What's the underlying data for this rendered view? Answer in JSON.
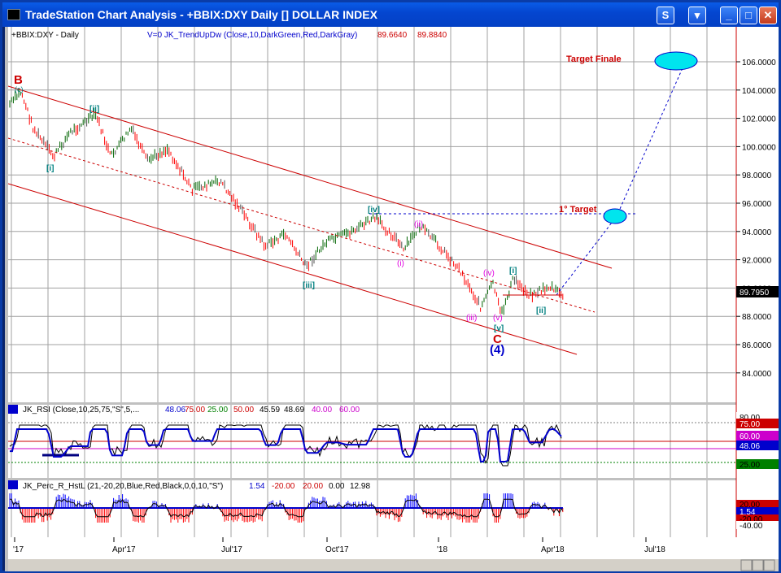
{
  "window": {
    "title": "TradeStation Chart Analysis - +BBIX:DXY Daily [] DOLLAR INDEX",
    "buttons": {
      "s": "S",
      "dropdown": "▾",
      "min": "_",
      "max": "□",
      "close": "✕"
    }
  },
  "price_panel": {
    "symbol": "+BBIX:DXY - Daily",
    "indicator": "V=0  JK_TrendUpDw (Close,10,DarkGreen,Red,DarkGray)",
    "ind_val1": "89.6640",
    "ind_val2": "89.8840",
    "last_price": "89.7950",
    "y_ticks": [
      "106.0000",
      "104.0000",
      "102.0000",
      "100.0000",
      "98.0000",
      "96.0000",
      "94.0000",
      "92.0000",
      "90.0000",
      "88.0000",
      "86.0000",
      "84.0000"
    ],
    "annotations": {
      "b": "B",
      "c": "C",
      "four": "(4)",
      "target_finale": "Target Finale",
      "target1": "1° Target",
      "w_ii": "[ii]",
      "w_i": "[i]",
      "w_iii": "[iii]",
      "w_iv": "[iv]",
      "w_v": "[v]",
      "w_i2": "[i]",
      "w_ii2": "[ii]",
      "s_i": "(i)",
      "s_ii": "(ii)",
      "s_iii": "(iii)",
      "s_iv": "(iv)",
      "s_v": "(v)",
      "s_c": "(c)"
    }
  },
  "rsi_panel": {
    "label": "JK_RSI (Close,10,25,75,\"S\",5,...",
    "v1": "48.06",
    "v2": "75.00",
    "v3": "25.00",
    "v4": "50.00",
    "v5": "45.59",
    "v6": "48.69",
    "v7": "40.00",
    "v8": "60.00",
    "axis_labels": [
      "80.00",
      "75.00",
      "60.00",
      "48.06",
      "25.00"
    ]
  },
  "perc_panel": {
    "label": "JK_Perc_R_HstL (21,-20,20,Blue,Red,Black,0,0,10,\"S\")",
    "v1": "1.54",
    "v2": "-20.00",
    "v3": "20.00",
    "v4": "0.00",
    "v5": "12.98",
    "axis_labels": [
      "20.00",
      "1.54",
      "-20.00",
      "-40.00"
    ]
  },
  "x_axis": {
    "labels": [
      "'17",
      "Apr'17",
      "Jul'17",
      "Oct'17",
      "'18",
      "Apr'18",
      "Jul'18"
    ]
  },
  "colors": {
    "background": "#ffffff",
    "up_bar": "#006400",
    "down_bar": "#ff0000",
    "neutral_bar": "#505050",
    "channel": "#cc0000",
    "projection": "#0000cc",
    "target_fill": "#00e5ee",
    "rsi_fill": "#8080ff",
    "perc_up": "#0000ff",
    "perc_down": "#ff0000"
  }
}
